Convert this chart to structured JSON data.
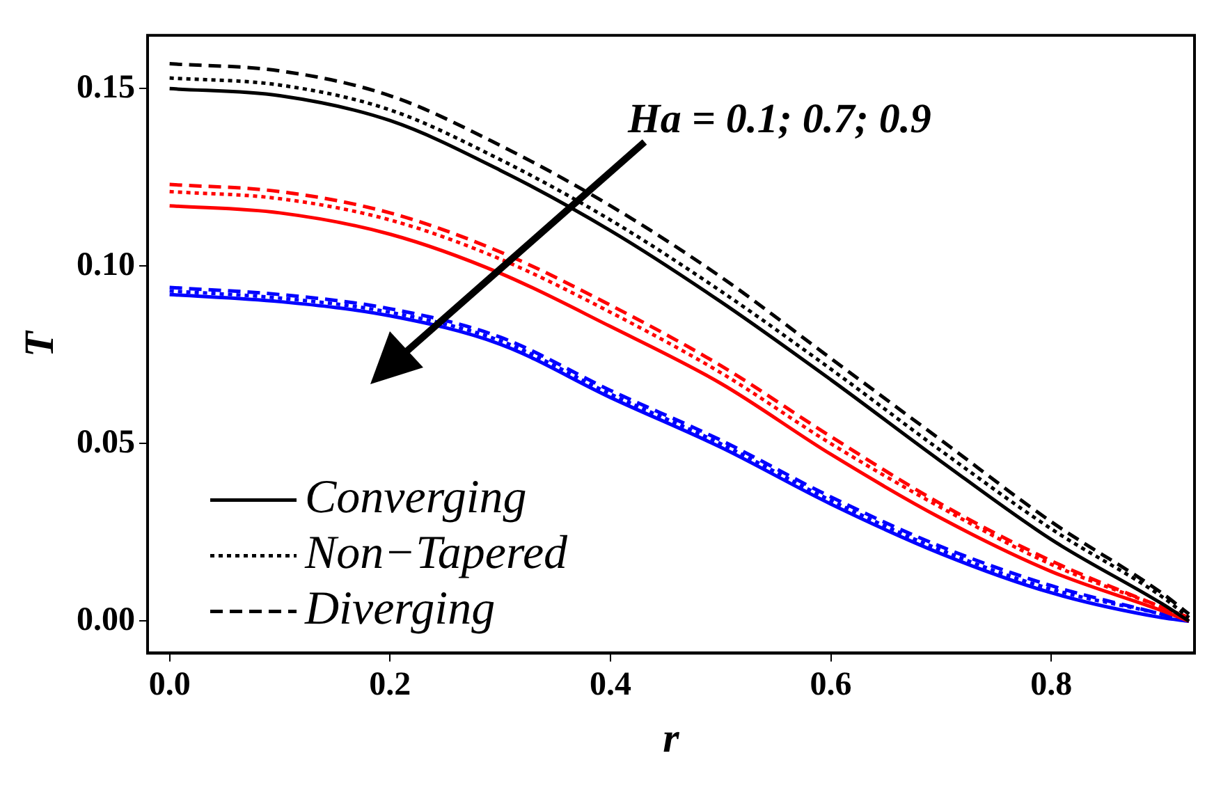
{
  "chart_data": {
    "type": "line",
    "xlabel": "r",
    "ylabel": "T",
    "annotations": [
      "Ha = 0.1; 0.7; 0.9"
    ],
    "x": [
      0,
      0.1,
      0.2,
      0.3,
      0.4,
      0.5,
      0.6,
      0.7,
      0.8,
      0.9,
      0.925
    ],
    "series": [
      {
        "name": "Converging",
        "color": "#000000",
        "line_style": "solid",
        "values": [
          0.15,
          0.148,
          0.141,
          0.127,
          0.11,
          0.09,
          0.068,
          0.045,
          0.023,
          0.005,
          0.0
        ]
      },
      {
        "name": "Non−Tapered",
        "color": "#000000",
        "line_style": "dotted",
        "values": [
          0.153,
          0.151,
          0.144,
          0.13,
          0.113,
          0.093,
          0.071,
          0.048,
          0.026,
          0.007,
          0.001
        ]
      },
      {
        "name": "Diverging",
        "color": "#000000",
        "line_style": "dashed",
        "values": [
          0.157,
          0.155,
          0.148,
          0.134,
          0.117,
          0.097,
          0.074,
          0.051,
          0.028,
          0.008,
          0.002
        ]
      },
      {
        "color": "#ff0000",
        "line_style": "solid",
        "values": [
          0.117,
          0.115,
          0.109,
          0.098,
          0.083,
          0.067,
          0.047,
          0.029,
          0.014,
          0.003,
          0.0
        ]
      },
      {
        "color": "#ff0000",
        "line_style": "dotted",
        "values": [
          0.121,
          0.119,
          0.113,
          0.102,
          0.087,
          0.07,
          0.05,
          0.032,
          0.016,
          0.004,
          0.001
        ]
      },
      {
        "color": "#ff0000",
        "line_style": "dashed",
        "values": [
          0.123,
          0.121,
          0.115,
          0.104,
          0.089,
          0.072,
          0.052,
          0.033,
          0.017,
          0.004,
          0.001
        ]
      },
      {
        "color": "#0000ff",
        "line_style": "solid",
        "values": [
          0.092,
          0.09,
          0.086,
          0.078,
          0.063,
          0.049,
          0.033,
          0.019,
          0.008,
          0.001,
          0.0
        ]
      },
      {
        "color": "#0000ff",
        "line_style": "dotted",
        "values": [
          0.093,
          0.091,
          0.087,
          0.079,
          0.064,
          0.05,
          0.034,
          0.02,
          0.009,
          0.002,
          0.0
        ]
      },
      {
        "color": "#0000ff",
        "line_style": "dashed",
        "values": [
          0.094,
          0.092,
          0.088,
          0.08,
          0.065,
          0.051,
          0.035,
          0.021,
          0.01,
          0.002,
          0.0
        ]
      }
    ],
    "xlim": [
      -0.02,
      0.93
    ],
    "xticks": [
      {
        "value": 0,
        "label": "0.0"
      },
      {
        "value": 0.2,
        "label": "0.2"
      },
      {
        "value": 0.4,
        "label": "0.4"
      },
      {
        "value": 0.6,
        "label": "0.6"
      },
      {
        "value": 0.8,
        "label": "0.8"
      }
    ],
    "ylim": [
      -0.009,
      0.165
    ],
    "yticks": [
      {
        "value": 0,
        "label": "0.00"
      },
      {
        "value": 0.05,
        "label": "0.05"
      },
      {
        "value": 0.1,
        "label": "0.10"
      },
      {
        "value": 0.15,
        "label": "0.15"
      }
    ],
    "grid": false,
    "legend": "bottom left",
    "marker": "none"
  }
}
